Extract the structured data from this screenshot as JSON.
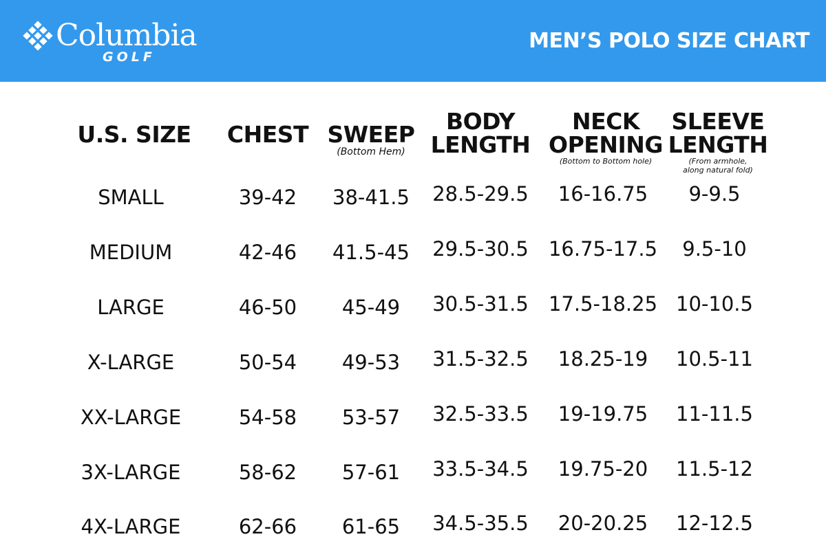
{
  "header": {
    "brand": "Columbia",
    "sub_brand": "GOLF",
    "title": "MEN’S POLO SIZE CHART",
    "background_color": "#3399ec"
  },
  "columns": [
    {
      "label_line1": "U.S. SIZE",
      "label_line2": "",
      "note_line1": "",
      "note_line2": ""
    },
    {
      "label_line1": "CHEST",
      "label_line2": "",
      "note_line1": "",
      "note_line2": ""
    },
    {
      "label_line1": "SWEEP",
      "label_line2": "",
      "note_line1": "(Bottom Hem)",
      "note_line2": ""
    },
    {
      "label_line1": "BODY",
      "label_line2": "LENGTH",
      "note_line1": "",
      "note_line2": ""
    },
    {
      "label_line1": "NECK",
      "label_line2": "OPENING",
      "note_line1": "(Bottom to Bottom hole)",
      "note_line2": ""
    },
    {
      "label_line1": "SLEEVE",
      "label_line2": "LENGTH",
      "note_line1": "(From armhole,",
      "note_line2": "along natural fold)"
    }
  ],
  "rows": [
    [
      "SMALL",
      "39-42",
      "38-41.5",
      "28.5-29.5",
      "16-16.75",
      "9-9.5"
    ],
    [
      "MEDIUM",
      "42-46",
      "41.5-45",
      "29.5-30.5",
      "16.75-17.5",
      "9.5-10"
    ],
    [
      "LARGE",
      "46-50",
      "45-49",
      "30.5-31.5",
      "17.5-18.25",
      "10-10.5"
    ],
    [
      "X-LARGE",
      "50-54",
      "49-53",
      "31.5-32.5",
      "18.25-19",
      "10.5-11"
    ],
    [
      "XX-LARGE",
      "54-58",
      "53-57",
      "32.5-33.5",
      "19-19.75",
      "11-11.5"
    ],
    [
      "3X-LARGE",
      "58-62",
      "57-61",
      "33.5-34.5",
      "19.75-20",
      "11.5-12"
    ],
    [
      "4X-LARGE",
      "62-66",
      "61-65",
      "34.5-35.5",
      "20-20.25",
      "12-12.5"
    ]
  ]
}
